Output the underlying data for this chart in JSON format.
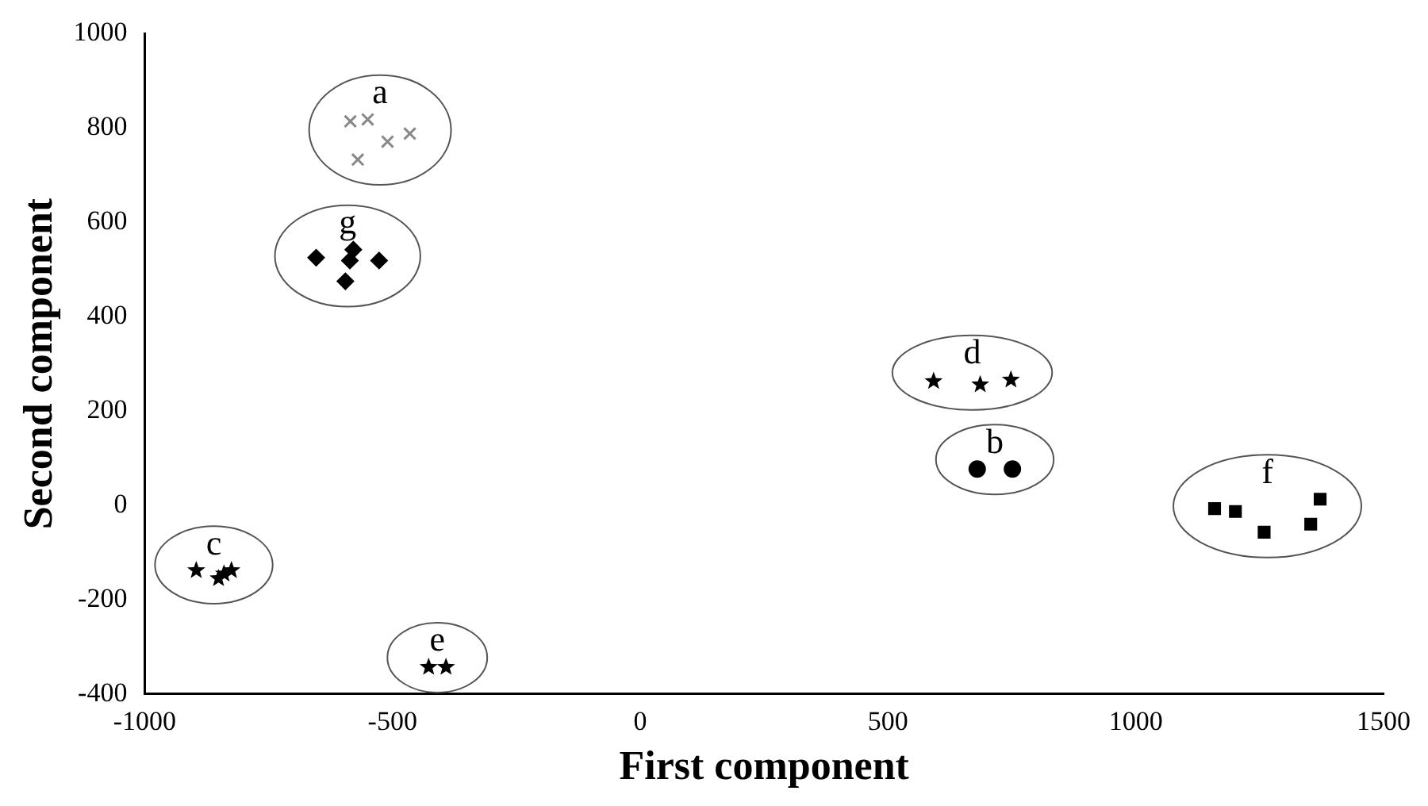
{
  "chart_data": {
    "type": "scatter",
    "xlabel": "First component",
    "ylabel": "Second component",
    "xlim": [
      -1000,
      1500
    ],
    "xticks": [
      -1000,
      -500,
      0,
      500,
      1000,
      1500
    ],
    "ylim": [
      -400,
      1000
    ],
    "yticks": [
      -400,
      -200,
      0,
      200,
      400,
      600,
      800,
      1000
    ],
    "grid": false,
    "legend": false,
    "series": [
      {
        "name": "a",
        "color": "#888888",
        "marker": "cross",
        "x": [
          -585,
          -550,
          -510,
          -465,
          -570
        ],
        "values": [
          814,
          818,
          771,
          788,
          733
        ]
      },
      {
        "name": "g",
        "color": "#000000",
        "marker": "diamond",
        "x": [
          -654,
          -579,
          -586,
          -527,
          -595
        ],
        "values": [
          525,
          542,
          519,
          519,
          475
        ]
      },
      {
        "name": "c",
        "color": "#000000",
        "marker": "star",
        "x": [
          -896,
          -851,
          -825,
          -840
        ],
        "values": [
          -138,
          -155,
          -138,
          -145
        ]
      },
      {
        "name": "e",
        "color": "#000000",
        "marker": "star",
        "x": [
          -427,
          -392
        ],
        "values": [
          -343,
          -343
        ]
      },
      {
        "name": "d",
        "color": "#000000",
        "marker": "star",
        "x": [
          592,
          686,
          748
        ],
        "values": [
          263,
          256,
          266
        ]
      },
      {
        "name": "b",
        "color": "#000000",
        "marker": "circle",
        "x": [
          680,
          751
        ],
        "values": [
          77,
          77
        ]
      },
      {
        "name": "f",
        "color": "#000000",
        "marker": "square",
        "x": [
          1159,
          1201,
          1259,
          1353,
          1372
        ],
        "values": [
          -7,
          -13,
          -57,
          -40,
          13
        ]
      }
    ]
  }
}
